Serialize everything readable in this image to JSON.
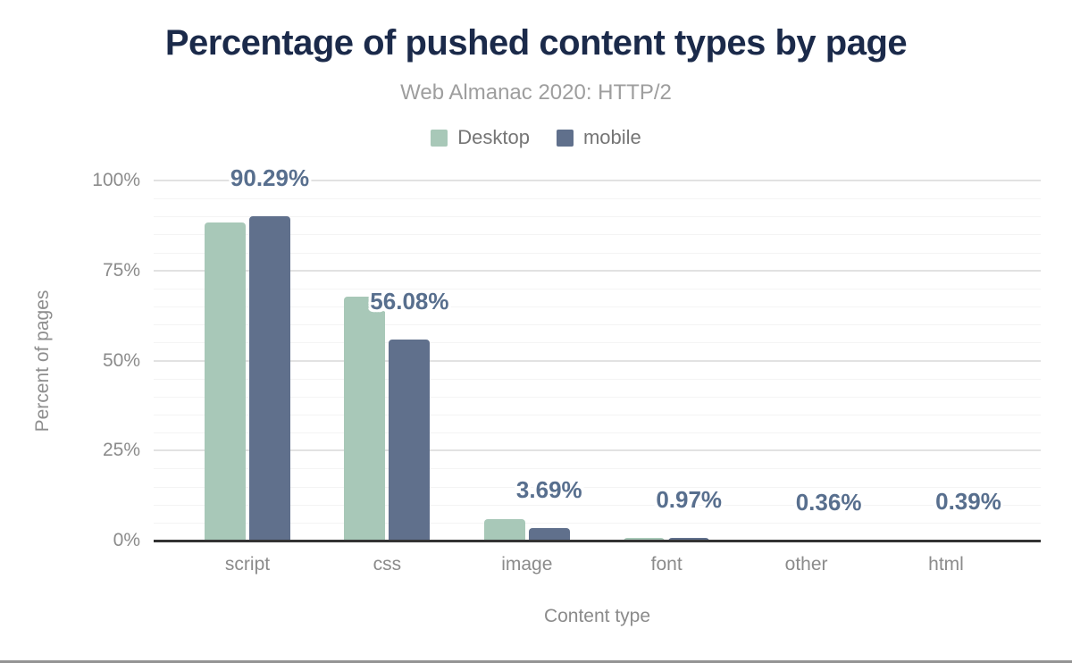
{
  "chart_data": {
    "type": "bar",
    "title": "Percentage of pushed content types by page",
    "subtitle": "Web Almanac 2020: HTTP/2",
    "xlabel": "Content type",
    "ylabel": "Percent of pages",
    "categories": [
      "script",
      "css",
      "image",
      "font",
      "other",
      "html"
    ],
    "series": [
      {
        "name": "Desktop",
        "color": "#a8c8b8",
        "values": [
          88.6,
          68.0,
          6.1,
          1.1,
          0.55,
          0.5
        ]
      },
      {
        "name": "mobile",
        "color": "#60708c",
        "values": [
          90.29,
          56.08,
          3.69,
          0.97,
          0.36,
          0.39
        ]
      }
    ],
    "data_labels": [
      "90.29%",
      "56.08%",
      "3.69%",
      "0.97%",
      "0.36%",
      "0.39%"
    ],
    "data_labels_follow_series": "mobile",
    "ylim": [
      0,
      100
    ],
    "yticks": [
      {
        "value": 0,
        "label": "0%"
      },
      {
        "value": 25,
        "label": "25%"
      },
      {
        "value": 50,
        "label": "50%"
      },
      {
        "value": 75,
        "label": "75%"
      },
      {
        "value": 100,
        "label": "100%"
      }
    ],
    "minor_grid_step": 5,
    "major_grid_step": 25,
    "grid": true,
    "legend_position": "top",
    "colors": {
      "title": "#1b2a4a",
      "subtitle": "#9e9e9e",
      "legend_text": "#757575",
      "axis_text": "#8b8b8b",
      "data_label": "#586f8e",
      "grid_minor": "#f4f4f4",
      "grid_major": "#e2e2e2",
      "axis_line": "#333333",
      "bottom_bar": "#949494"
    }
  }
}
